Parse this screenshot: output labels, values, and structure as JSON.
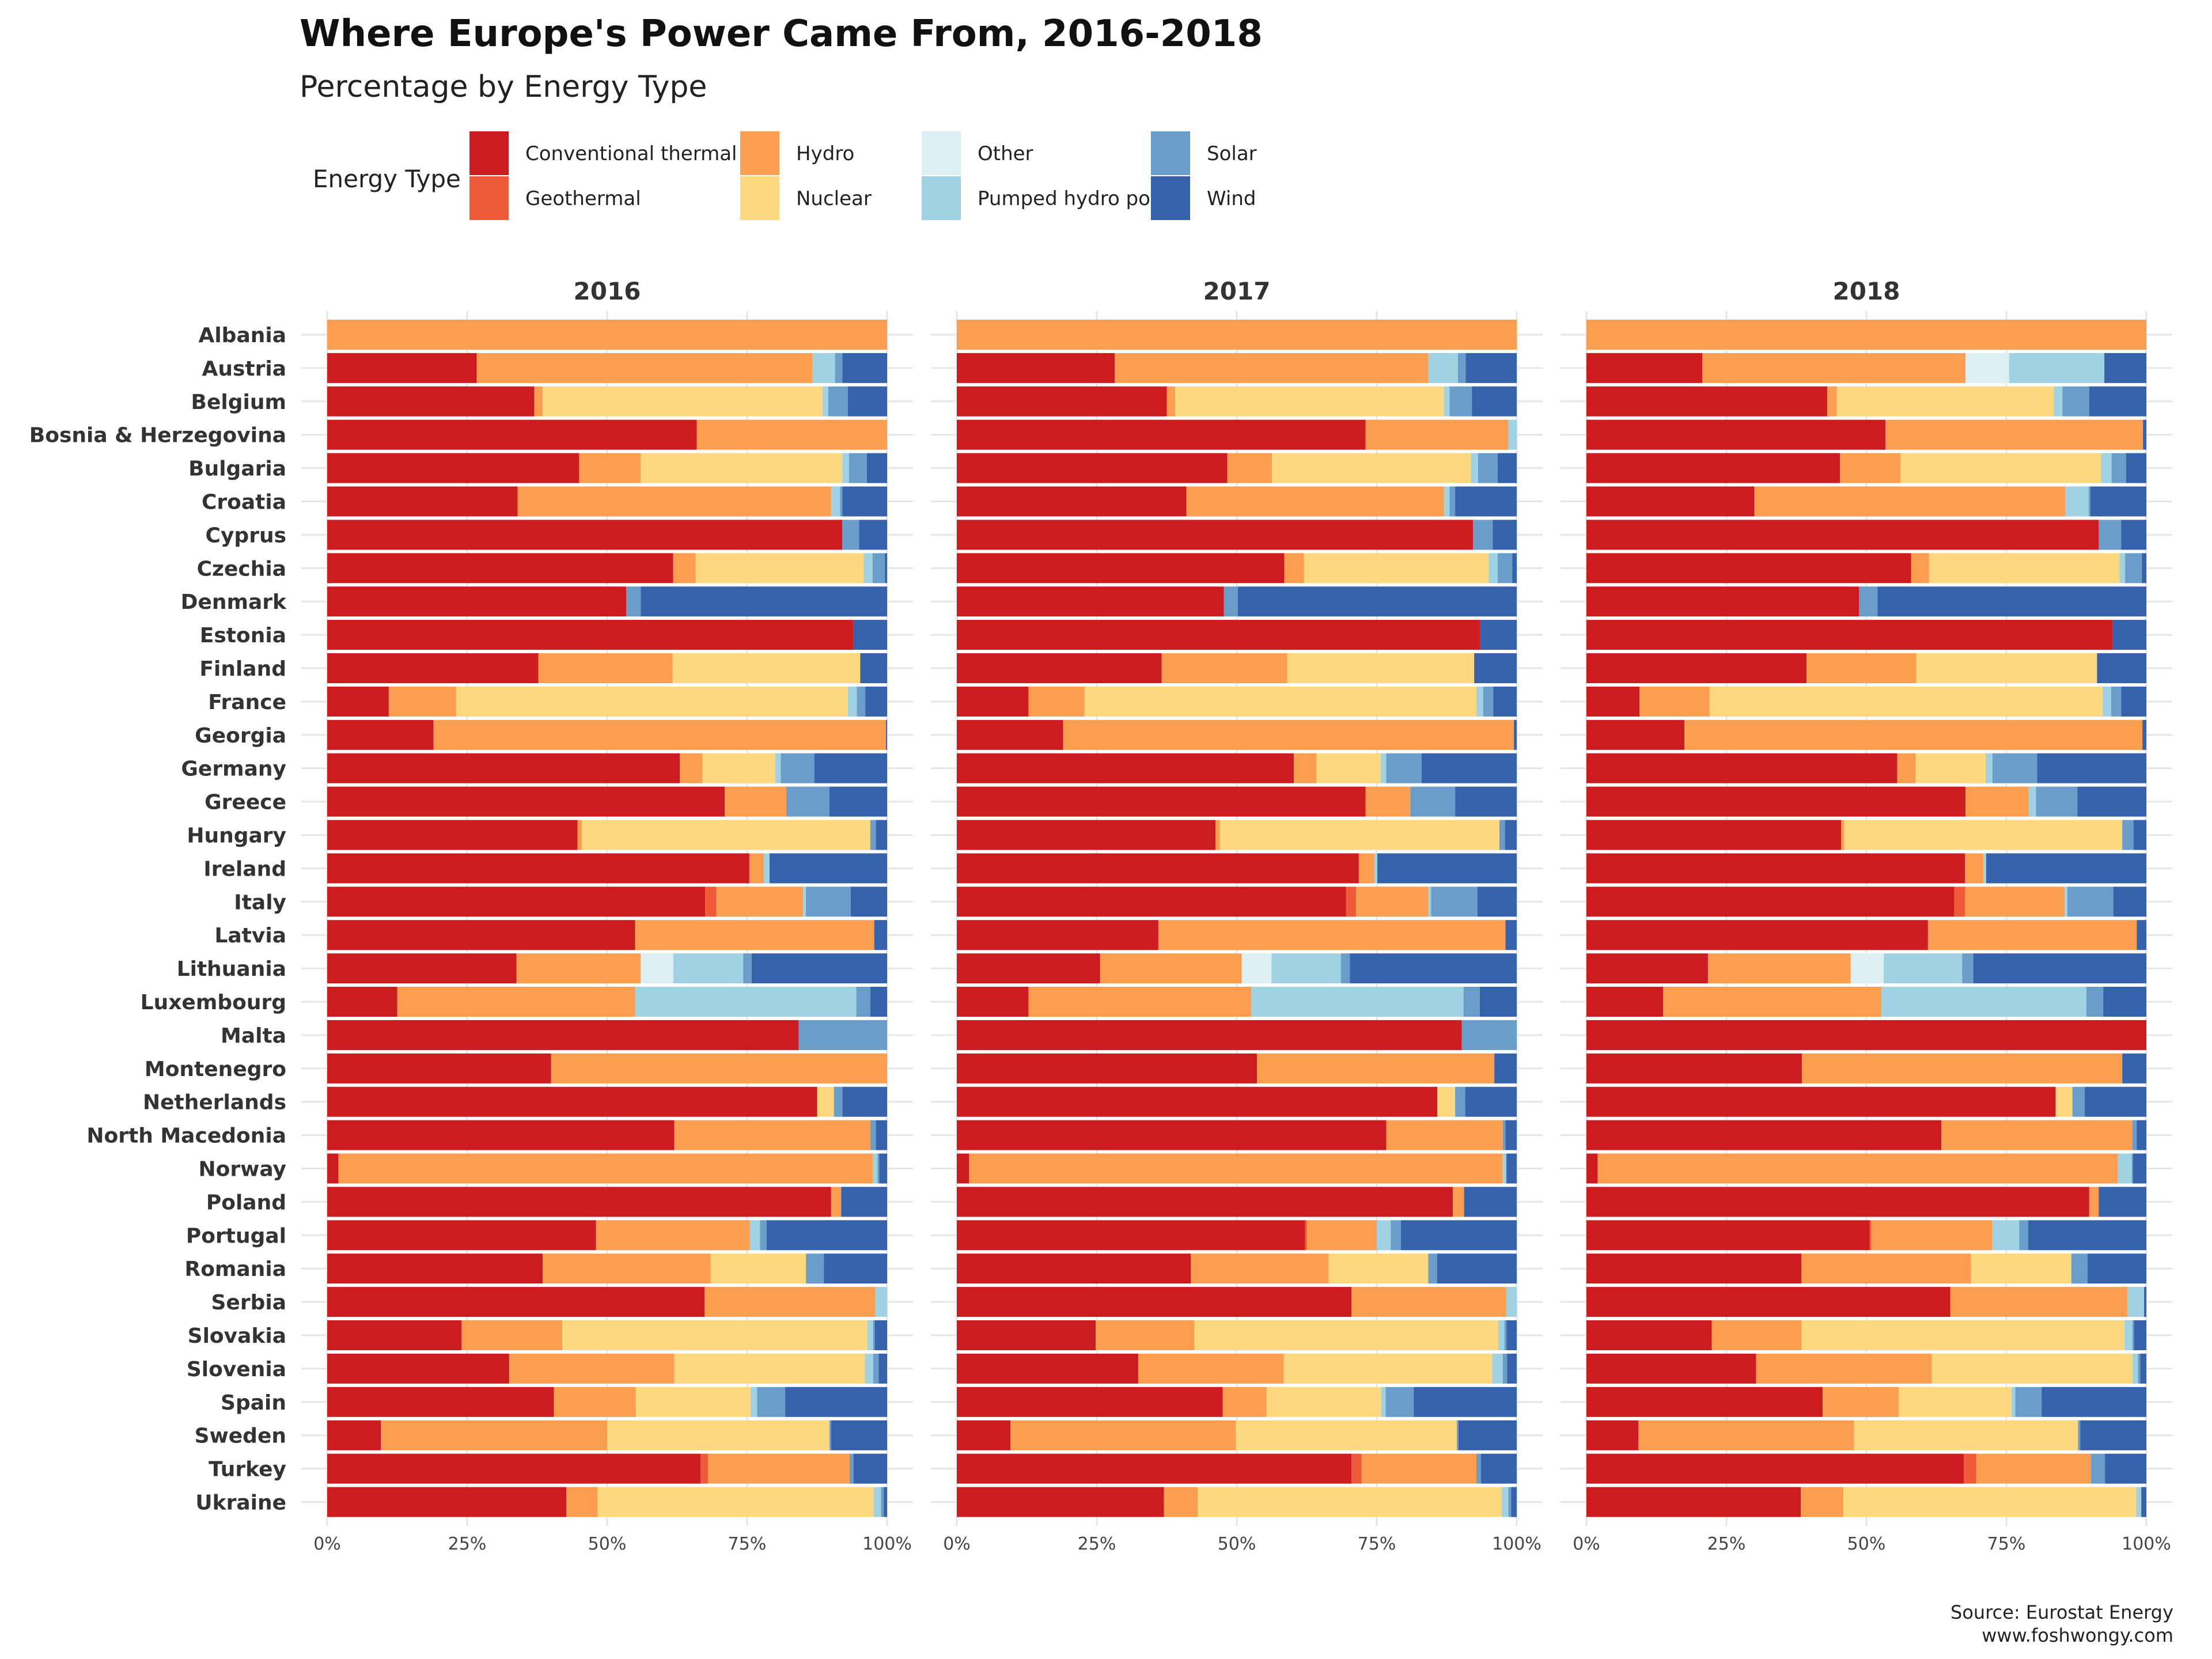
{
  "chart_data": {
    "type": "bar",
    "orientation": "horizontal",
    "stacked": "percent",
    "title": "Where Europe's Power Came From, 2016-2018",
    "subtitle": "Percentage by Energy Type",
    "legend_title": "Energy Type",
    "legend_position": "top",
    "caption": [
      "Source: Eurostat Energy",
      "www.foshwongy.com"
    ],
    "xlim": [
      0,
      100
    ],
    "x_ticks": [
      "0%",
      "25%",
      "50%",
      "75%",
      "100%"
    ],
    "grid": true,
    "series": [
      {
        "name": "Conventional thermal",
        "color": "#cc1c20"
      },
      {
        "name": "Geothermal",
        "color": "#ef5a38"
      },
      {
        "name": "Hydro",
        "color": "#fb9e4f"
      },
      {
        "name": "Nuclear",
        "color": "#fed87f"
      },
      {
        "name": "Other",
        "color": "#ddeff3"
      },
      {
        "name": "Pumped hydro power",
        "color": "#a0d2e4"
      },
      {
        "name": "Solar",
        "color": "#6a9dc9"
      },
      {
        "name": "Wind",
        "color": "#3661ab"
      }
    ],
    "categories": [
      "Albania",
      "Austria",
      "Belgium",
      "Bosnia & Herzegovina",
      "Bulgaria",
      "Croatia",
      "Cyprus",
      "Czechia",
      "Denmark",
      "Estonia",
      "Finland",
      "France",
      "Georgia",
      "Germany",
      "Greece",
      "Hungary",
      "Ireland",
      "Italy",
      "Latvia",
      "Lithuania",
      "Luxembourg",
      "Malta",
      "Montenegro",
      "Netherlands",
      "North Macedonia",
      "Norway",
      "Poland",
      "Portugal",
      "Romania",
      "Serbia",
      "Slovakia",
      "Slovenia",
      "Spain",
      "Sweden",
      "Turkey",
      "Ukraine"
    ],
    "facets": [
      {
        "label": "2016",
        "values": [
          [
            0,
            0,
            100,
            0,
            0,
            0,
            0,
            0
          ],
          [
            26.7,
            0,
            60,
            0,
            0,
            4,
            1.3,
            8
          ],
          [
            37,
            0,
            1.5,
            50,
            0,
            1,
            3.5,
            7
          ],
          [
            66,
            0,
            34,
            0,
            0,
            0,
            0,
            0
          ],
          [
            45,
            0,
            11,
            36,
            0,
            1.2,
            3.2,
            3.6
          ],
          [
            34,
            0,
            56,
            0,
            0,
            1.6,
            0.4,
            8
          ],
          [
            92,
            0,
            0,
            0,
            0,
            0,
            3,
            5
          ],
          [
            61.8,
            0,
            4,
            30,
            0,
            1.6,
            2.2,
            0.4
          ],
          [
            53.4,
            0,
            0,
            0,
            0,
            0,
            2.6,
            44
          ],
          [
            94,
            0,
            0,
            0,
            0,
            0,
            0,
            6
          ],
          [
            37.7,
            0,
            24,
            33.5,
            0,
            0,
            0,
            4.8
          ],
          [
            11,
            0,
            12,
            70,
            0,
            1.6,
            1.5,
            3.9
          ],
          [
            19,
            0,
            80.8,
            0,
            0,
            0,
            0,
            0.2
          ],
          [
            63,
            0,
            4,
            13,
            0,
            1,
            6,
            13
          ],
          [
            71,
            0,
            11,
            0,
            0,
            0,
            7.7,
            10.3
          ],
          [
            44.7,
            0,
            0.8,
            51.5,
            0,
            0,
            1,
            2
          ],
          [
            75.4,
            0,
            2.6,
            0,
            0,
            1,
            0,
            21
          ],
          [
            67.5,
            2,
            15.5,
            0,
            0,
            0.5,
            8,
            6.5
          ],
          [
            55,
            0,
            42.7,
            0,
            0,
            0,
            0,
            2.3
          ],
          [
            33.8,
            0,
            22.2,
            0,
            5.8,
            12.5,
            1.5,
            24.2
          ],
          [
            12.5,
            0,
            42.5,
            0,
            0,
            39.5,
            2.5,
            3
          ],
          [
            84.2,
            0,
            0,
            0,
            0,
            0,
            15.8,
            0
          ],
          [
            40,
            0,
            60,
            0,
            0,
            0,
            0,
            0
          ],
          [
            87.5,
            0,
            0,
            3,
            0,
            0,
            1.5,
            8
          ],
          [
            62,
            0,
            35,
            0,
            0,
            0,
            1,
            2
          ],
          [
            2,
            0,
            95.5,
            0,
            0,
            0.8,
            0.3,
            1.4
          ],
          [
            90,
            0,
            1.8,
            0,
            0,
            0,
            0,
            8.2
          ],
          [
            48,
            0,
            27.5,
            0,
            0,
            1.8,
            1.2,
            21.5
          ],
          [
            38.5,
            0,
            30,
            17,
            0,
            0,
            3.2,
            11.3
          ],
          [
            67.4,
            0,
            30.5,
            0,
            0,
            2.1,
            0,
            0
          ],
          [
            24,
            0,
            18,
            54.5,
            0,
            1,
            0.3,
            2.2
          ],
          [
            32.5,
            0,
            29.5,
            34,
            0,
            1.5,
            1,
            1.5
          ],
          [
            40.5,
            0,
            14.6,
            20.5,
            0,
            1.2,
            5,
            18.2
          ],
          [
            9.6,
            0,
            40.4,
            39.7,
            0,
            0,
            0.3,
            10
          ],
          [
            66.7,
            1.3,
            25.3,
            0,
            0,
            0,
            0.7,
            6
          ],
          [
            42.7,
            0,
            5.6,
            49.3,
            0,
            1.3,
            0.5,
            0.6
          ]
        ]
      },
      {
        "label": "2017",
        "values": [
          [
            0,
            0,
            100,
            0,
            0,
            0,
            0,
            0
          ],
          [
            28.2,
            0,
            56,
            0,
            0,
            5.3,
            1.4,
            9.1
          ],
          [
            37.5,
            0,
            1.5,
            48,
            0,
            1,
            4,
            8
          ],
          [
            73,
            0,
            25.5,
            0,
            0,
            1.5,
            0,
            0
          ],
          [
            48.3,
            0,
            8,
            35.5,
            0,
            1.3,
            3.5,
            3.4
          ],
          [
            41,
            0,
            46,
            0,
            0,
            1,
            1,
            11
          ],
          [
            92.2,
            0,
            0,
            0,
            0,
            0,
            3.5,
            4.3
          ],
          [
            58.5,
            0,
            3.5,
            33,
            0,
            1.6,
            2.6,
            0.8
          ],
          [
            47.7,
            0,
            0,
            0,
            0,
            0,
            2.5,
            49.8
          ],
          [
            93.5,
            0,
            0,
            0,
            0,
            0,
            0,
            6.5
          ],
          [
            36.6,
            0,
            22.4,
            33.4,
            0,
            0,
            0,
            7.6
          ],
          [
            12.8,
            0,
            10,
            70,
            0,
            1.2,
            1.8,
            4.2
          ],
          [
            19,
            0,
            80.5,
            0,
            0,
            0,
            0,
            0.5
          ],
          [
            60.2,
            0,
            4,
            11.5,
            0,
            1,
            6.3,
            17
          ],
          [
            73,
            0,
            8,
            0,
            0,
            0,
            8,
            11
          ],
          [
            46.2,
            0,
            0.8,
            49.9,
            0,
            0,
            1,
            2.1
          ],
          [
            71.8,
            0,
            2.8,
            0,
            0,
            0.5,
            0,
            24.9
          ],
          [
            69.5,
            1.8,
            12.9,
            0,
            0,
            0.5,
            8.3,
            7
          ],
          [
            36,
            0,
            62,
            0,
            0,
            0,
            0,
            2
          ],
          [
            25.6,
            0,
            25.3,
            0,
            5.3,
            12.4,
            1.6,
            29.8
          ],
          [
            12.8,
            0,
            39.8,
            0,
            0,
            37.9,
            2.9,
            6.6
          ],
          [
            90.2,
            0,
            0,
            0,
            0,
            0,
            9.8,
            0
          ],
          [
            53.6,
            0,
            42.4,
            0,
            0,
            0,
            0,
            4
          ],
          [
            85.8,
            0,
            0,
            3.2,
            0,
            0,
            1.8,
            9.2
          ],
          [
            76.7,
            0,
            20.8,
            0,
            0,
            0,
            0.5,
            2
          ],
          [
            2.2,
            0,
            95.3,
            0,
            0,
            0.6,
            0.1,
            1.8
          ],
          [
            88.6,
            0,
            2,
            0,
            0,
            0,
            0,
            9.4
          ],
          [
            62.2,
            0.3,
            12.5,
            0,
            0,
            2.5,
            1.8,
            20.7
          ],
          [
            41.8,
            0,
            24.6,
            17.8,
            0,
            0,
            1.6,
            14.2
          ],
          [
            70.5,
            0,
            27.6,
            0,
            0,
            1.9,
            0,
            0
          ],
          [
            24.8,
            0,
            17.6,
            54.3,
            0,
            1.1,
            0.4,
            1.8
          ],
          [
            32.4,
            0,
            26,
            37.2,
            0,
            1.9,
            0.8,
            1.7
          ],
          [
            47.5,
            0,
            7.8,
            20.5,
            0,
            0.8,
            5,
            18.4
          ],
          [
            9.6,
            0,
            40.2,
            39.5,
            0,
            0,
            0.3,
            10.4
          ],
          [
            70.5,
            1.8,
            20.5,
            0,
            0,
            0,
            0.8,
            6.4
          ],
          [
            37,
            0,
            6,
            54.3,
            0,
            1.2,
            0.5,
            1
          ]
        ]
      },
      {
        "label": "2018",
        "values": [
          [
            0,
            0,
            100,
            0,
            0,
            0,
            0,
            0
          ],
          [
            20.7,
            0,
            47,
            0,
            7.8,
            17,
            0,
            7.5
          ],
          [
            43,
            0,
            1.7,
            38.8,
            0,
            1.5,
            4.8,
            10.2
          ],
          [
            53.4,
            0,
            46,
            0,
            0,
            0,
            0,
            0.6
          ],
          [
            45.3,
            0,
            10.8,
            35.8,
            0,
            1.9,
            2.6,
            3.6
          ],
          [
            30,
            0,
            55.5,
            0,
            0,
            4.2,
            0.3,
            10
          ],
          [
            91.5,
            0,
            0,
            0,
            0,
            0,
            4,
            4.5
          ],
          [
            58,
            0,
            3.2,
            34,
            0,
            1,
            3,
            0.8
          ],
          [
            48.7,
            0,
            0,
            0,
            0,
            0,
            3.3,
            48
          ],
          [
            94,
            0,
            0,
            0,
            0,
            0,
            0,
            6
          ],
          [
            39.3,
            0,
            19.6,
            32.3,
            0,
            0,
            0,
            8.8
          ],
          [
            9.5,
            0,
            12.5,
            70.2,
            0,
            1.5,
            1.8,
            4.5
          ],
          [
            17.5,
            0,
            81.8,
            0,
            0,
            0,
            0,
            0.7
          ],
          [
            55.5,
            0,
            3.3,
            12.5,
            0,
            1.2,
            8,
            19.5
          ],
          [
            67.7,
            0,
            11.3,
            0,
            0,
            1.3,
            7.4,
            12.3
          ],
          [
            45.5,
            0,
            0.5,
            49.7,
            0,
            0,
            2,
            2.3
          ],
          [
            67.6,
            0,
            3.3,
            0,
            0,
            0.5,
            0,
            28.6
          ],
          [
            65.7,
            1.9,
            17.8,
            0,
            0,
            0.5,
            8.2,
            5.9
          ],
          [
            61,
            0,
            37.3,
            0,
            0,
            0,
            0,
            1.7
          ],
          [
            21.7,
            0,
            25.5,
            0,
            5.9,
            14,
            2,
            30.9
          ],
          [
            13.7,
            0,
            39,
            0,
            0,
            36.6,
            3,
            7.7
          ],
          [
            100,
            0,
            0,
            0,
            0,
            0,
            0,
            0
          ],
          [
            38.5,
            0,
            57.2,
            0,
            0,
            0,
            0,
            4.3
          ],
          [
            83.8,
            0,
            0,
            3,
            0,
            0,
            2.2,
            11
          ],
          [
            63.4,
            0,
            34.1,
            0,
            0,
            0,
            0.8,
            1.7
          ],
          [
            2,
            0,
            92.9,
            0,
            0,
            2.5,
            0.2,
            2.4
          ],
          [
            89.8,
            0,
            1.7,
            0,
            0,
            0,
            0,
            8.5
          ],
          [
            50.6,
            0.3,
            21.6,
            0,
            0,
            4.8,
            1.6,
            21.1
          ],
          [
            38.4,
            0,
            30.3,
            17.9,
            0,
            0,
            2.9,
            10.5
          ],
          [
            65,
            0,
            31.6,
            0,
            0,
            3,
            0,
            0.4
          ],
          [
            22.4,
            0,
            16,
            57.7,
            0,
            1.4,
            0.3,
            2.2
          ],
          [
            30.3,
            0,
            31.4,
            35.8,
            0,
            1,
            0.4,
            1.1
          ],
          [
            42.2,
            0,
            13.6,
            20.1,
            0,
            0.7,
            4.7,
            18.7
          ],
          [
            9.3,
            0,
            38.5,
            40,
            0,
            0,
            0.4,
            11.8
          ],
          [
            67.4,
            2.2,
            20.5,
            0,
            0,
            0,
            2.5,
            7.4
          ],
          [
            38.3,
            0,
            7.6,
            52.3,
            0,
            0.9,
            0,
            0.9
          ]
        ]
      }
    ]
  }
}
